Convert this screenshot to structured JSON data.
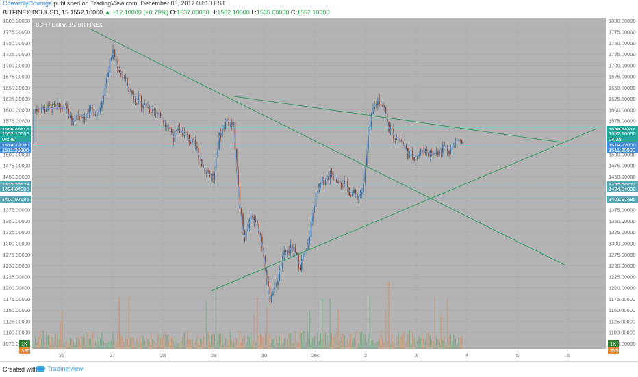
{
  "header": {
    "author": "CowardlyCourage",
    "published_text": "published on TradingView.com, December 05, 2017 03:10 EST",
    "symbol_line": "BITFINEX:BCHUSD, 15",
    "price": "1552.10000",
    "change": "▲ +12.10000 (+0.79%)",
    "o_label": "O:",
    "o_value": "1537.00000",
    "h_label": "H:",
    "h_value": "1552.10000",
    "l_label": "L:",
    "l_value": "1535.00000",
    "c_label": "C:",
    "c_value": "1552.10000"
  },
  "footer": {
    "created_with": "Created with",
    "brand": "TradingView"
  },
  "chart_data": {
    "type": "line",
    "title": "BCH / Dollar, 15, BITFINEX",
    "ylim": [
      1062.5,
      1806.5
    ],
    "yticks": [
      1800,
      1775,
      1750,
      1725,
      1700,
      1675,
      1650,
      1625,
      1600,
      1575,
      1550,
      1525,
      1500,
      1475,
      1450,
      1425,
      1400,
      1375,
      1350,
      1325,
      1300,
      1275,
      1250,
      1225,
      1200,
      1175,
      1150,
      1125,
      1100,
      1075
    ],
    "x_labels": [
      "26",
      "27",
      "28",
      "29",
      "30",
      "Dec",
      "2",
      "3",
      "4",
      "5",
      "6"
    ],
    "horizontal_levels": [
      1559.66916,
      1552.1,
      1519.72,
      1432.38574,
      1401.97685
    ],
    "price_badges": [
      {
        "text": "1559.66916",
        "color": "#26a69a"
      },
      {
        "text": "1552.10000",
        "color": "#26a69a"
      },
      {
        "text": "04:28",
        "color": "#26a69a"
      },
      {
        "text": "1519.72000",
        "color": "#4a90d9"
      },
      {
        "text": "1511.20000",
        "color": "#4a90d9"
      },
      {
        "text": "1432.38574",
        "color": "#5aa7b4"
      },
      {
        "text": "1424.04000",
        "color": "#5aa7b4"
      },
      {
        "text": "1401.97685",
        "color": "#5aa7b4"
      }
    ],
    "volume_badges": [
      {
        "text": "1K",
        "color": "#2e7d32"
      },
      {
        "text": "335",
        "color": "#e5883a"
      }
    ],
    "price_series": [
      [
        0.0,
        1604
      ],
      [
        0.1,
        1600
      ],
      [
        0.2,
        1570
      ],
      [
        0.3,
        1590
      ],
      [
        0.45,
        1586
      ],
      [
        0.6,
        1595
      ],
      [
        0.75,
        1600
      ],
      [
        0.9,
        1680
      ],
      [
        1.0,
        1730
      ],
      [
        1.1,
        1700
      ],
      [
        1.25,
        1665
      ],
      [
        1.35,
        1640
      ],
      [
        1.5,
        1622
      ],
      [
        1.65,
        1610
      ],
      [
        1.8,
        1600
      ],
      [
        1.95,
        1585
      ],
      [
        2.1,
        1565
      ],
      [
        2.2,
        1538
      ],
      [
        2.35,
        1555
      ],
      [
        2.5,
        1535
      ],
      [
        2.65,
        1515
      ],
      [
        2.8,
        1470
      ],
      [
        3.0,
        1445
      ],
      [
        3.1,
        1535
      ],
      [
        3.25,
        1580
      ],
      [
        3.4,
        1560
      ],
      [
        3.5,
        1400
      ],
      [
        3.6,
        1310
      ],
      [
        3.75,
        1360
      ],
      [
        3.9,
        1330
      ],
      [
        4.0,
        1270
      ],
      [
        4.1,
        1175
      ],
      [
        4.25,
        1215
      ],
      [
        4.4,
        1275
      ],
      [
        4.55,
        1290
      ],
      [
        4.7,
        1250
      ],
      [
        4.85,
        1285
      ],
      [
        5.0,
        1400
      ],
      [
        5.15,
        1440
      ],
      [
        5.3,
        1455
      ],
      [
        5.5,
        1445
      ],
      [
        5.7,
        1415
      ],
      [
        5.85,
        1405
      ],
      [
        5.95,
        1420
      ],
      [
        6.05,
        1540
      ],
      [
        6.15,
        1600
      ],
      [
        6.25,
        1625
      ],
      [
        6.35,
        1610
      ],
      [
        6.45,
        1560
      ],
      [
        6.55,
        1545
      ],
      [
        6.7,
        1530
      ],
      [
        6.85,
        1500
      ],
      [
        7.0,
        1495
      ],
      [
        7.15,
        1510
      ],
      [
        7.3,
        1500
      ],
      [
        7.4,
        1505
      ],
      [
        7.55,
        1518
      ],
      [
        7.7,
        1510
      ],
      [
        7.8,
        1535
      ],
      [
        7.9,
        1524
      ]
    ],
    "trendlines": [
      {
        "from": [
          0.55,
          1782
        ],
        "to": [
          9.95,
          1250
        ],
        "color": "#2e9e5e"
      },
      {
        "from": [
          3.4,
          1630
        ],
        "to": [
          9.85,
          1527
        ],
        "color": "#2e9e5e"
      },
      {
        "from": [
          2.95,
          1193
        ],
        "to": [
          10.55,
          1557
        ],
        "color": "#2e9e5e"
      }
    ],
    "volume_max": 1000
  }
}
